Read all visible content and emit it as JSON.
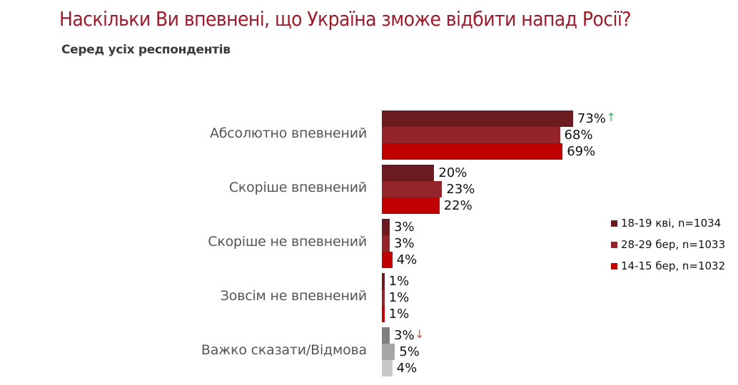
{
  "header": {
    "title": "Наскільки Ви впевнені, що Україна зможе відбити напад Росії?",
    "subtitle": "Серед усіх респондентів"
  },
  "legend": [
    {
      "label": "18-19 кві, n=1034",
      "color": "#6b1a1f"
    },
    {
      "label": "28-29 бер, n=1033",
      "color": "#92242a"
    },
    {
      "label": "14-15 бер, n=1032",
      "color": "#c00000"
    }
  ],
  "chart_data": {
    "type": "bar",
    "orientation": "horizontal",
    "title": "Наскільки Ви впевнені, що Україна зможе відбити напад Росії?",
    "subtitle": "Серед усіх респондентів",
    "categories": [
      "Абсолютно впевнений",
      "Скоріше впевнений",
      "Скоріше не впевнений",
      "Зовсім не впевнений",
      "Важко сказати/Відмова"
    ],
    "series": [
      {
        "name": "18-19 кві, n=1034",
        "values": [
          73,
          20,
          3,
          1,
          3
        ],
        "labels": [
          "73%",
          "20%",
          "3%",
          "1%",
          "3%"
        ]
      },
      {
        "name": "28-29 бер, n=1033",
        "values": [
          68,
          23,
          3,
          1,
          5
        ],
        "labels": [
          "68%",
          "23%",
          "3%",
          "1%",
          "5%"
        ]
      },
      {
        "name": "14-15 бер, n=1032",
        "values": [
          69,
          22,
          4,
          1,
          4
        ],
        "labels": [
          "69%",
          "22%",
          "4%",
          "1%",
          "4%"
        ]
      }
    ],
    "colors": {
      "default": [
        "#6b1a1f",
        "#92242a",
        "#c00000"
      ],
      "last_category": [
        "#7f7f7f",
        "#a6a6a6",
        "#c8c8c8"
      ]
    },
    "annotations": [
      {
        "category": "Абсолютно впевнений",
        "series": "18-19 кві, n=1034",
        "symbol": "arrow-up",
        "color": "#3cb371"
      },
      {
        "category": "Важко сказати/Відмова",
        "series": "18-19 кві, n=1034",
        "symbol": "arrow-down",
        "color": "#e05050"
      }
    ],
    "xlabel": "",
    "ylabel": "",
    "xlim": [
      0,
      100
    ],
    "grid": false,
    "legend_position": "right"
  }
}
